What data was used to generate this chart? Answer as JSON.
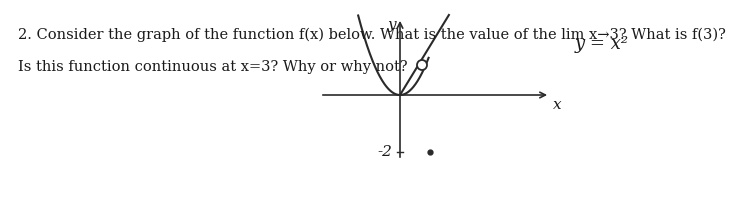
{
  "text_line1": "2. Consider the graph of the function f(x) below. What is the value of the lim x→3? What is f(3)?",
  "text_line2": "Is this function continuous at x=3? Why or why not?",
  "background_color": "#ffffff",
  "text_color": "#1a1a1a",
  "curve_color": "#2a2a2a",
  "axis_color": "#2a2a2a",
  "label_y_eq_x2": "y = x²",
  "label_neg2": "-2",
  "label_x": "x",
  "label_y": "y",
  "font_size_main": 10.5,
  "font_size_label": 11,
  "font_size_eq": 13
}
